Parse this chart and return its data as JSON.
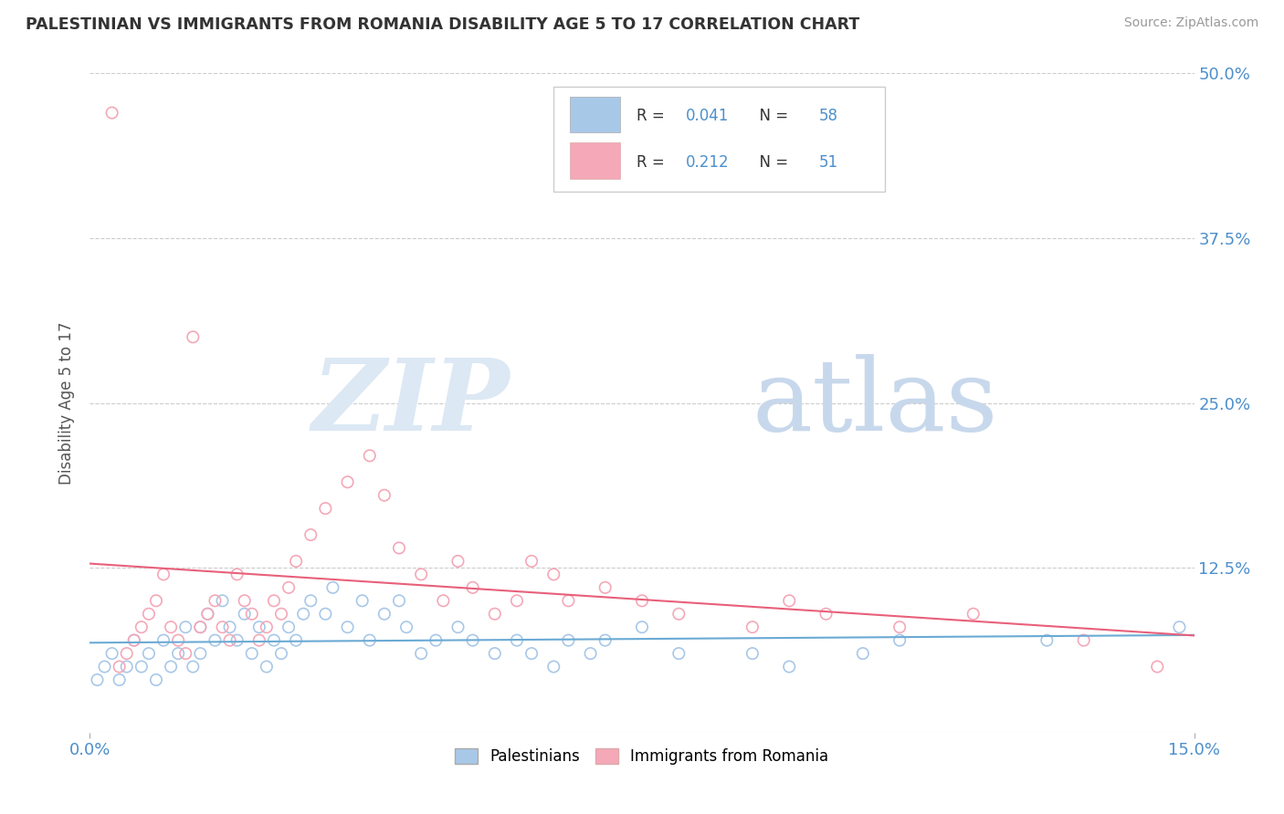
{
  "title": "PALESTINIAN VS IMMIGRANTS FROM ROMANIA DISABILITY AGE 5 TO 17 CORRELATION CHART",
  "source": "Source: ZipAtlas.com",
  "ylabel": "Disability Age 5 to 17",
  "xlim": [
    0.0,
    0.15
  ],
  "ylim": [
    0.0,
    0.5
  ],
  "yticks": [
    0.0,
    0.125,
    0.25,
    0.375,
    0.5
  ],
  "ytick_labels": [
    "",
    "12.5%",
    "25.0%",
    "37.5%",
    "50.0%"
  ],
  "color_blue": "#a8c8e8",
  "color_pink": "#f4a8b8",
  "line_blue": "#6aaad4",
  "line_pink": "#e8607a",
  "label_color": "#4d8fcc",
  "title_color": "#333333",
  "grid_color": "#cccccc",
  "watermark_zip_color": "#dce8f4",
  "watermark_atlas_color": "#c8d8ec",
  "pal_x": [
    0.001,
    0.002,
    0.003,
    0.004,
    0.005,
    0.006,
    0.007,
    0.008,
    0.009,
    0.01,
    0.011,
    0.012,
    0.013,
    0.014,
    0.015,
    0.015,
    0.016,
    0.017,
    0.018,
    0.019,
    0.02,
    0.021,
    0.022,
    0.023,
    0.024,
    0.025,
    0.026,
    0.027,
    0.028,
    0.029,
    0.03,
    0.032,
    0.033,
    0.035,
    0.037,
    0.038,
    0.04,
    0.042,
    0.043,
    0.045,
    0.047,
    0.05,
    0.052,
    0.055,
    0.058,
    0.06,
    0.063,
    0.065,
    0.068,
    0.07,
    0.075,
    0.08,
    0.09,
    0.095,
    0.105,
    0.11,
    0.13,
    0.148
  ],
  "pal_y": [
    0.04,
    0.05,
    0.06,
    0.04,
    0.05,
    0.07,
    0.05,
    0.06,
    0.04,
    0.07,
    0.05,
    0.06,
    0.08,
    0.05,
    0.06,
    0.08,
    0.09,
    0.07,
    0.1,
    0.08,
    0.07,
    0.09,
    0.06,
    0.08,
    0.05,
    0.07,
    0.06,
    0.08,
    0.07,
    0.09,
    0.1,
    0.09,
    0.11,
    0.08,
    0.1,
    0.07,
    0.09,
    0.1,
    0.08,
    0.06,
    0.07,
    0.08,
    0.07,
    0.06,
    0.07,
    0.06,
    0.05,
    0.07,
    0.06,
    0.07,
    0.08,
    0.06,
    0.06,
    0.05,
    0.06,
    0.07,
    0.07,
    0.08
  ],
  "rom_x": [
    0.003,
    0.004,
    0.005,
    0.006,
    0.007,
    0.008,
    0.009,
    0.01,
    0.011,
    0.012,
    0.013,
    0.014,
    0.015,
    0.016,
    0.017,
    0.018,
    0.019,
    0.02,
    0.021,
    0.022,
    0.023,
    0.024,
    0.025,
    0.026,
    0.027,
    0.028,
    0.03,
    0.032,
    0.035,
    0.038,
    0.04,
    0.042,
    0.045,
    0.048,
    0.05,
    0.052,
    0.055,
    0.058,
    0.06,
    0.063,
    0.065,
    0.07,
    0.075,
    0.08,
    0.09,
    0.095,
    0.1,
    0.11,
    0.12,
    0.135,
    0.145
  ],
  "rom_y": [
    0.47,
    0.05,
    0.06,
    0.07,
    0.08,
    0.09,
    0.1,
    0.12,
    0.08,
    0.07,
    0.06,
    0.3,
    0.08,
    0.09,
    0.1,
    0.08,
    0.07,
    0.12,
    0.1,
    0.09,
    0.07,
    0.08,
    0.1,
    0.09,
    0.11,
    0.13,
    0.15,
    0.17,
    0.19,
    0.21,
    0.18,
    0.14,
    0.12,
    0.1,
    0.13,
    0.11,
    0.09,
    0.1,
    0.13,
    0.12,
    0.1,
    0.11,
    0.1,
    0.09,
    0.08,
    0.1,
    0.09,
    0.08,
    0.09,
    0.07,
    0.05
  ]
}
